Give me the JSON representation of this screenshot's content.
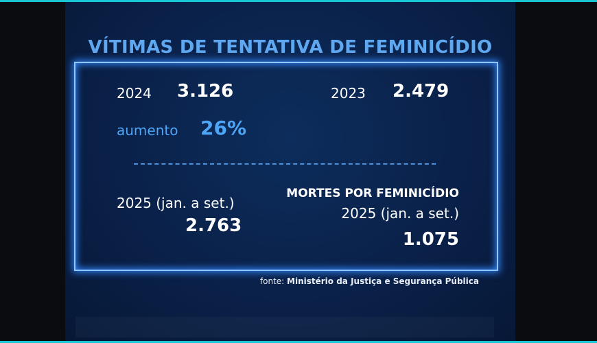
{
  "header": {
    "title": "VÍTIMAS DE TENTATIVA DE FEMINICÍDIO"
  },
  "stats": {
    "year_2024": {
      "label": "2024",
      "value": "3.126"
    },
    "year_2023": {
      "label": "2023",
      "value": "2.479"
    },
    "increase": {
      "label": "aumento",
      "value": "26%"
    },
    "year_2025": {
      "label": "2025 (jan. a set.)",
      "value": "2.763"
    },
    "deaths": {
      "title": "MORTES POR FEMINICÍDIO",
      "label": "2025 (jan. a set.)",
      "value": "1.075"
    }
  },
  "source": {
    "prefix": "fonte:",
    "text": "Ministério da Justiça e Segurança Pública"
  }
}
